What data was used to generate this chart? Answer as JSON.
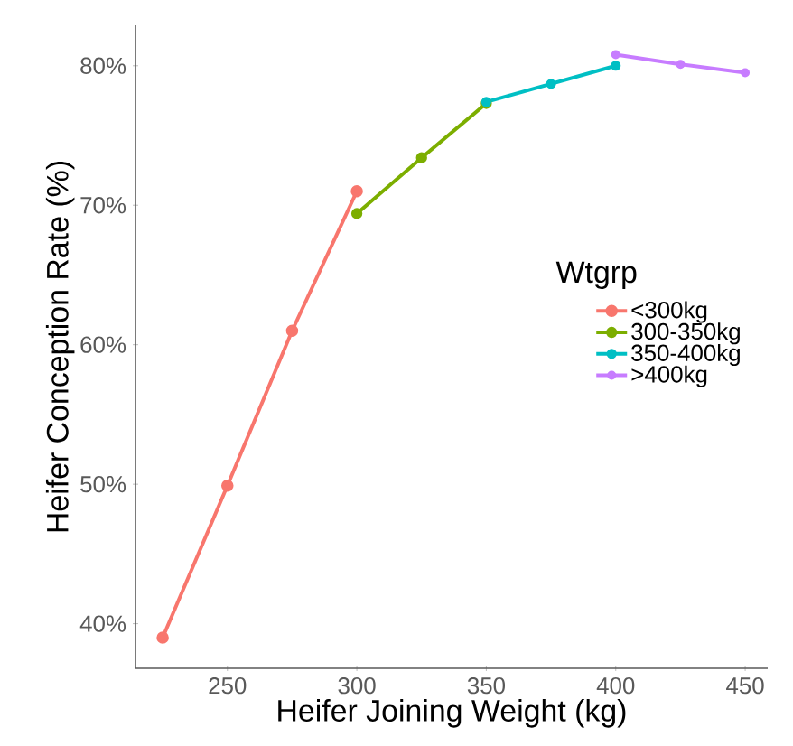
{
  "chart_data": {
    "type": "line",
    "xlabel": "Heifer Joining Weight (kg)",
    "ylabel": "Heifer Conception Rate (%)",
    "legend_title": "Wtgrp",
    "legend": "right",
    "marker": "circle",
    "line_style": "solid",
    "grid": false,
    "xlim": [
      214.5,
      458.7
    ],
    "ylim": [
      36.8,
      82.9
    ],
    "xticks": [
      250,
      300,
      350,
      400,
      450
    ],
    "yticks": [
      {
        "value": 40,
        "label": "40%"
      },
      {
        "value": 50,
        "label": "50%"
      },
      {
        "value": 60,
        "label": "60%"
      },
      {
        "value": 70,
        "label": "70%"
      },
      {
        "value": 80,
        "label": "80%"
      }
    ],
    "series": [
      {
        "name": "<300kg",
        "color": "#f8766d",
        "x": [
          225,
          250,
          275,
          300
        ],
        "values": [
          39.0,
          49.9,
          61.0,
          71.0
        ]
      },
      {
        "name": "300-350kg",
        "color": "#7cae00",
        "x": [
          300,
          325,
          350
        ],
        "values": [
          69.4,
          73.4,
          77.3
        ]
      },
      {
        "name": "350-400kg",
        "color": "#00bfc4",
        "x": [
          350,
          375,
          400
        ],
        "values": [
          77.4,
          78.7,
          80.0
        ]
      },
      {
        "name": ">400kg",
        "color": "#c77cff",
        "x": [
          400,
          425,
          450
        ],
        "values": [
          80.8,
          80.1,
          79.5
        ]
      }
    ]
  }
}
